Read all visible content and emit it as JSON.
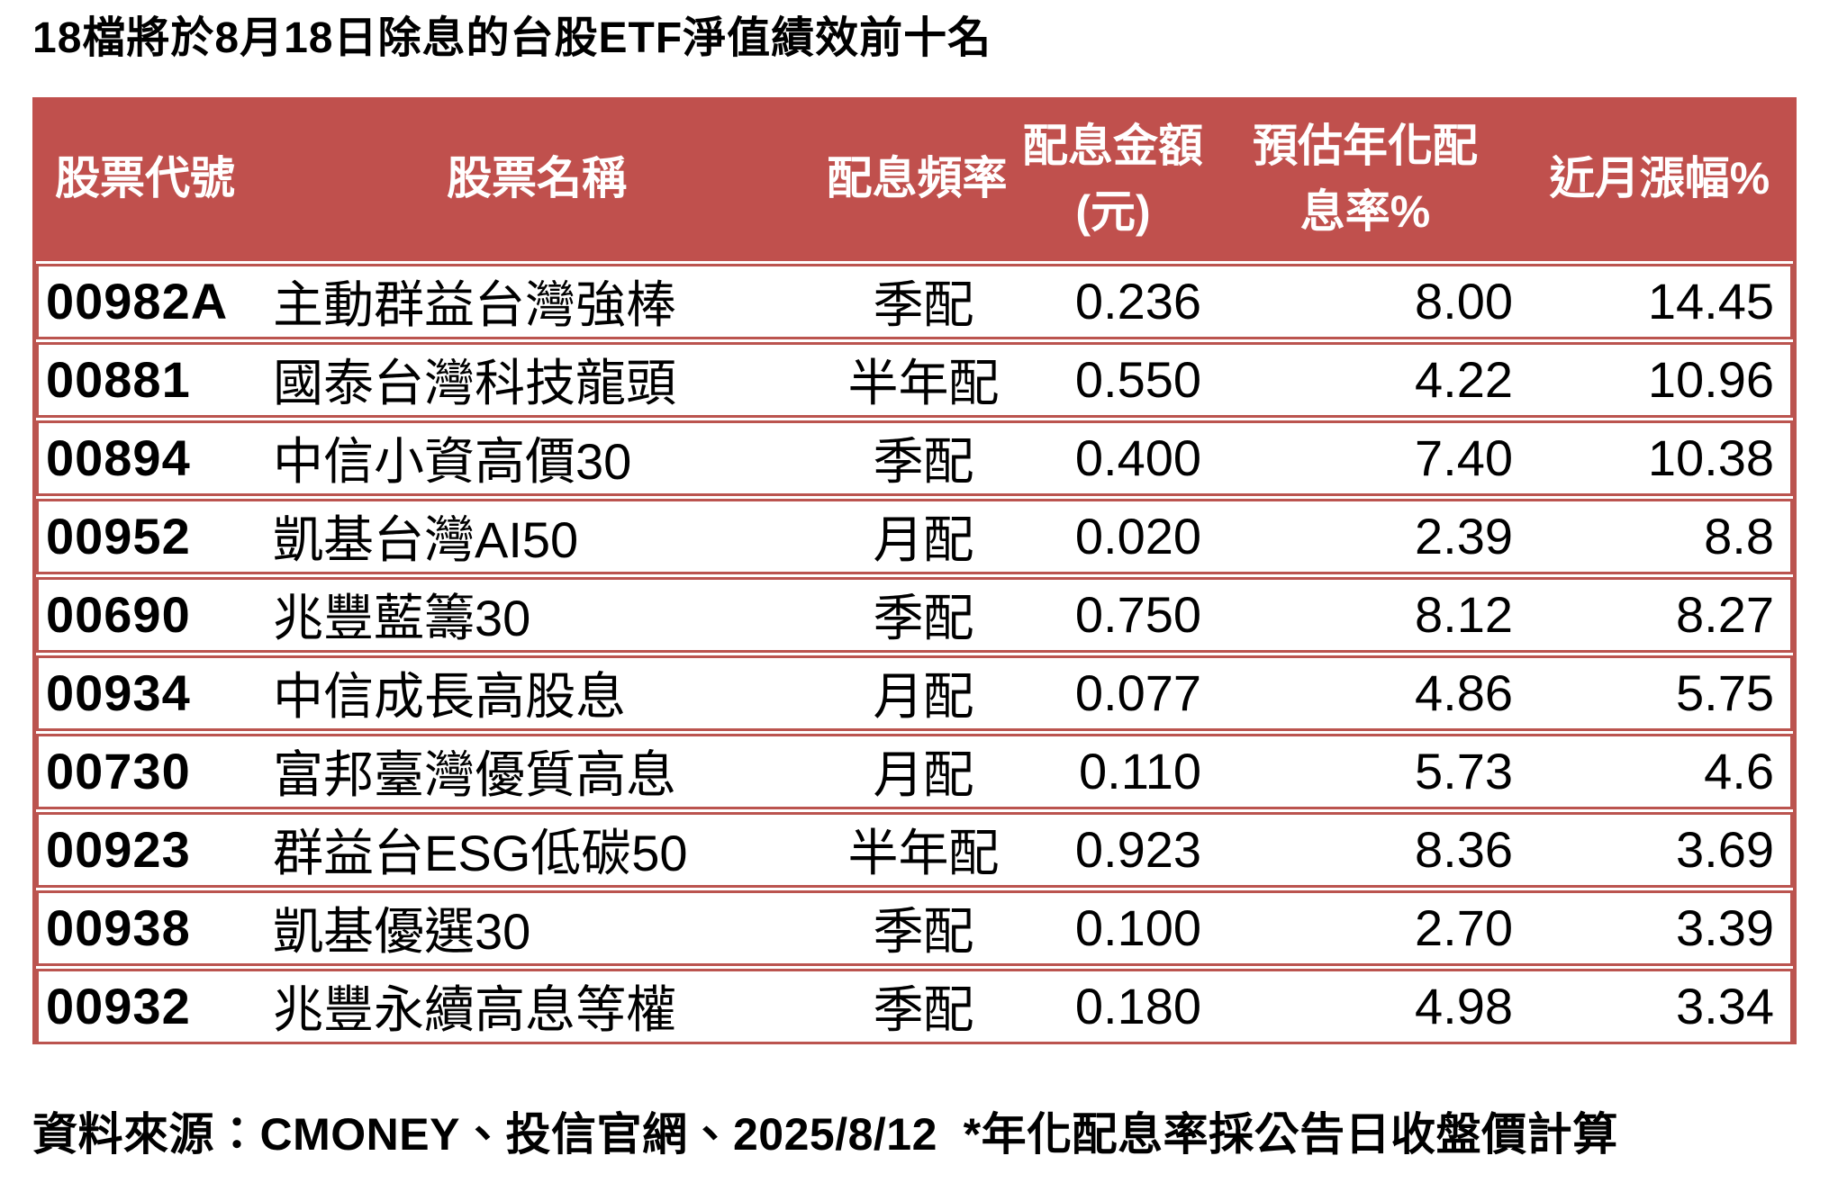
{
  "title": "18檔將於8月18日除息的台股ETF淨值績效前十名",
  "source_note": "資料來源：CMONEY、投信官網、2025/8/12  *年化配息率採公告日收盤價計算",
  "colors": {
    "header_bg": "#c0504d",
    "border": "#bb544f",
    "header_text": "#ffffff",
    "body_text": "#000000"
  },
  "table": {
    "headers": {
      "code": "股票代號",
      "name": "股票名稱",
      "frequency": "配息頻率",
      "amount_line1": "配息金額",
      "amount_line2": "(元)",
      "rate_line1": "預估年化配",
      "rate_line2": "息率%",
      "gain": "近月漲幅%"
    },
    "rows": [
      {
        "code": "00982A",
        "name": "主動群益台灣強棒",
        "frequency": "季配",
        "amount": "0.236",
        "rate": "8.00",
        "gain": "14.45"
      },
      {
        "code": "00881",
        "name": "國泰台灣科技龍頭",
        "frequency": "半年配",
        "amount": "0.550",
        "rate": "4.22",
        "gain": "10.96"
      },
      {
        "code": "00894",
        "name": "中信小資高價30",
        "frequency": "季配",
        "amount": "0.400",
        "rate": "7.40",
        "gain": "10.38"
      },
      {
        "code": "00952",
        "name": "凱基台灣AI50",
        "frequency": "月配",
        "amount": "0.020",
        "rate": "2.39",
        "gain": "8.8"
      },
      {
        "code": "00690",
        "name": "兆豐藍籌30",
        "frequency": "季配",
        "amount": "0.750",
        "rate": "8.12",
        "gain": "8.27"
      },
      {
        "code": "00934",
        "name": "中信成長高股息",
        "frequency": "月配",
        "amount": "0.077",
        "rate": "4.86",
        "gain": "5.75"
      },
      {
        "code": "00730",
        "name": "富邦臺灣優質高息",
        "frequency": "月配",
        "amount": "0.110",
        "rate": "5.73",
        "gain": "4.6"
      },
      {
        "code": "00923",
        "name": "群益台ESG低碳50",
        "frequency": "半年配",
        "amount": "0.923",
        "rate": "8.36",
        "gain": "3.69"
      },
      {
        "code": "00938",
        "name": "凱基優選30",
        "frequency": "季配",
        "amount": "0.100",
        "rate": "2.70",
        "gain": "3.39"
      },
      {
        "code": "00932",
        "name": "兆豐永續高息等權",
        "frequency": "季配",
        "amount": "0.180",
        "rate": "4.98",
        "gain": "3.34"
      }
    ]
  },
  "chart_data": {
    "type": "table",
    "title": "18檔將於8月18日除息的台股ETF淨值績效前十名",
    "columns": [
      "股票代號",
      "股票名稱",
      "配息頻率",
      "配息金額(元)",
      "預估年化配息率%",
      "近月漲幅%"
    ],
    "rows": [
      [
        "00982A",
        "主動群益台灣強棒",
        "季配",
        0.236,
        8.0,
        14.45
      ],
      [
        "00881",
        "國泰台灣科技龍頭",
        "半年配",
        0.55,
        4.22,
        10.96
      ],
      [
        "00894",
        "中信小資高價30",
        "季配",
        0.4,
        7.4,
        10.38
      ],
      [
        "00952",
        "凱基台灣AI50",
        "月配",
        0.02,
        2.39,
        8.8
      ],
      [
        "00690",
        "兆豐藍籌30",
        "季配",
        0.75,
        8.12,
        8.27
      ],
      [
        "00934",
        "中信成長高股息",
        "月配",
        0.077,
        4.86,
        5.75
      ],
      [
        "00730",
        "富邦臺灣優質高息",
        "月配",
        0.11,
        5.73,
        4.6
      ],
      [
        "00923",
        "群益台ESG低碳50",
        "半年配",
        0.923,
        8.36,
        3.69
      ],
      [
        "00938",
        "凱基優選30",
        "季配",
        0.1,
        2.7,
        3.39
      ],
      [
        "00932",
        "兆豐永續高息等權",
        "季配",
        0.18,
        4.98,
        3.34
      ]
    ],
    "annotations": [
      "資料來源：CMONEY、投信官網、2025/8/12",
      "*年化配息率採公告日收盤價計算"
    ],
    "header_style": {
      "background": "#c0504d",
      "text": "#ffffff"
    }
  }
}
